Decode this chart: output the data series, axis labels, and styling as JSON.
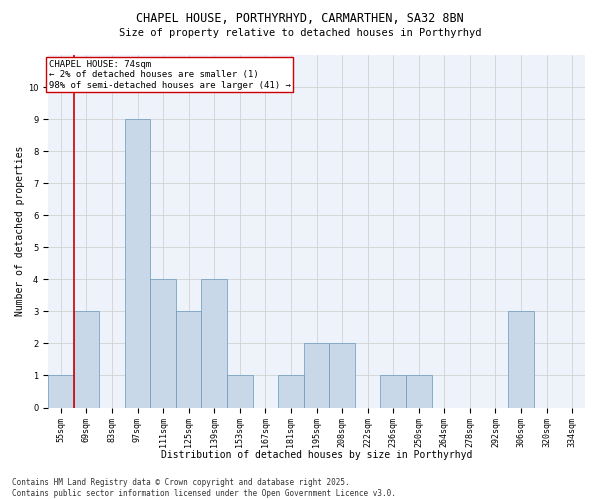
{
  "title1": "CHAPEL HOUSE, PORTHYRHYD, CARMARTHEN, SA32 8BN",
  "title2": "Size of property relative to detached houses in Porthyrhyd",
  "xlabel": "Distribution of detached houses by size in Porthyrhyd",
  "ylabel": "Number of detached properties",
  "bins": [
    "55sqm",
    "69sqm",
    "83sqm",
    "97sqm",
    "111sqm",
    "125sqm",
    "139sqm",
    "153sqm",
    "167sqm",
    "181sqm",
    "195sqm",
    "208sqm",
    "222sqm",
    "236sqm",
    "250sqm",
    "264sqm",
    "278sqm",
    "292sqm",
    "306sqm",
    "320sqm",
    "334sqm"
  ],
  "values": [
    1,
    3,
    0,
    9,
    4,
    3,
    4,
    1,
    0,
    1,
    2,
    2,
    0,
    1,
    1,
    0,
    0,
    0,
    3,
    0,
    0
  ],
  "bar_color": "#c8d8e8",
  "bar_edge_color": "#6699bb",
  "vline_color": "#cc0000",
  "vline_x": 0.5,
  "annotation_text": "CHAPEL HOUSE: 74sqm\n← 2% of detached houses are smaller (1)\n98% of semi-detached houses are larger (41) →",
  "annotation_box_color": "#ffffff",
  "annotation_box_edge": "#cc0000",
  "ylim": [
    0,
    11
  ],
  "yticks": [
    0,
    1,
    2,
    3,
    4,
    5,
    6,
    7,
    8,
    9,
    10,
    11
  ],
  "grid_color": "#cccccc",
  "background_color": "#eef2fa",
  "footer": "Contains HM Land Registry data © Crown copyright and database right 2025.\nContains public sector information licensed under the Open Government Licence v3.0.",
  "title_fontsize": 8.5,
  "subtitle_fontsize": 7.5,
  "xlabel_fontsize": 7,
  "ylabel_fontsize": 7,
  "tick_fontsize": 6,
  "annotation_fontsize": 6.5,
  "footer_fontsize": 5.5
}
